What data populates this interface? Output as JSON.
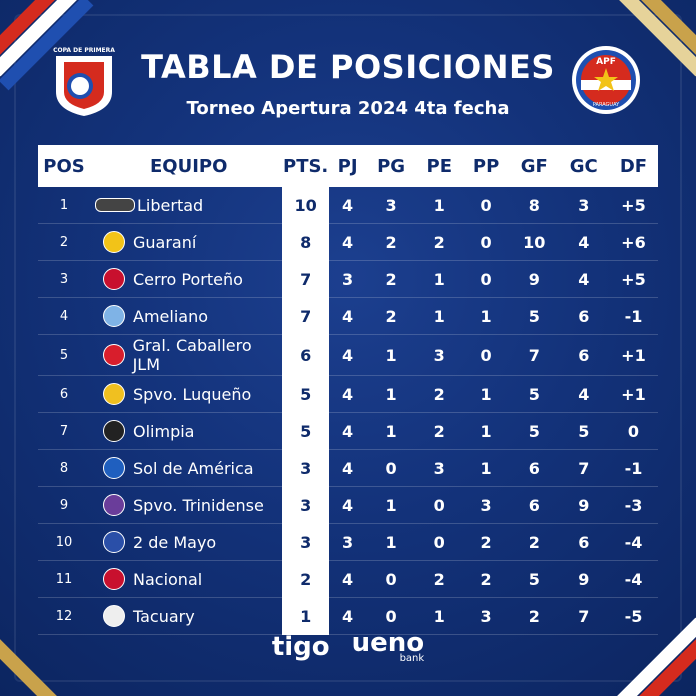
{
  "header": {
    "title": "TABLA DE POSICIONES",
    "subtitle": "Torneo Apertura 2024 4ta fecha",
    "left_logo_text": "COPA DE PRIMERA",
    "right_logo_text": "APF",
    "right_logo_sub": "PARAGUAY"
  },
  "table": {
    "columns": [
      "POS",
      "EQUIPO",
      "PTS.",
      "PJ",
      "PG",
      "PE",
      "PP",
      "GF",
      "GC",
      "DF"
    ],
    "rows": [
      {
        "pos": "1",
        "team": "Libertad",
        "pts": "10",
        "pj": "4",
        "pg": "3",
        "pe": "1",
        "pp": "0",
        "gf": "8",
        "gc": "3",
        "df": "+5",
        "crest": "#444444"
      },
      {
        "pos": "2",
        "team": "Guaraní",
        "pts": "8",
        "pj": "4",
        "pg": "2",
        "pe": "2",
        "pp": "0",
        "gf": "10",
        "gc": "4",
        "df": "+6",
        "crest": "#f2c318"
      },
      {
        "pos": "3",
        "team": "Cerro Porteño",
        "pts": "7",
        "pj": "3",
        "pg": "2",
        "pe": "1",
        "pp": "0",
        "gf": "9",
        "gc": "4",
        "df": "+5",
        "crest": "#c8102e"
      },
      {
        "pos": "4",
        "team": "Ameliano",
        "pts": "7",
        "pj": "4",
        "pg": "2",
        "pe": "1",
        "pp": "1",
        "gf": "5",
        "gc": "6",
        "df": "-1",
        "crest": "#7fb3e6"
      },
      {
        "pos": "5",
        "team": "Gral. Caballero JLM",
        "pts": "6",
        "pj": "4",
        "pg": "1",
        "pe": "3",
        "pp": "0",
        "gf": "7",
        "gc": "6",
        "df": "+1",
        "crest": "#d81e2c"
      },
      {
        "pos": "6",
        "team": "Spvo. Luqueño",
        "pts": "5",
        "pj": "4",
        "pg": "1",
        "pe": "2",
        "pp": "1",
        "gf": "5",
        "gc": "4",
        "df": "+1",
        "crest": "#f0c020"
      },
      {
        "pos": "7",
        "team": "Olimpia",
        "pts": "5",
        "pj": "4",
        "pg": "1",
        "pe": "2",
        "pp": "1",
        "gf": "5",
        "gc": "5",
        "df": "0",
        "crest": "#222222"
      },
      {
        "pos": "8",
        "team": "Sol de América",
        "pts": "3",
        "pj": "4",
        "pg": "0",
        "pe": "3",
        "pp": "1",
        "gf": "6",
        "gc": "7",
        "df": "-1",
        "crest": "#1f5fbf"
      },
      {
        "pos": "9",
        "team": "Spvo. Trinidense",
        "pts": "3",
        "pj": "4",
        "pg": "1",
        "pe": "0",
        "pp": "3",
        "gf": "6",
        "gc": "9",
        "df": "-3",
        "crest": "#6a3d9a"
      },
      {
        "pos": "10",
        "team": "2 de Mayo",
        "pts": "3",
        "pj": "3",
        "pg": "1",
        "pe": "0",
        "pp": "2",
        "gf": "2",
        "gc": "6",
        "df": "-4",
        "crest": "#2a4fa8"
      },
      {
        "pos": "11",
        "team": "Nacional",
        "pts": "2",
        "pj": "4",
        "pg": "0",
        "pe": "2",
        "pp": "2",
        "gf": "5",
        "gc": "9",
        "df": "-4",
        "crest": "#c8102e"
      },
      {
        "pos": "12",
        "team": "Tacuary",
        "pts": "1",
        "pj": "4",
        "pg": "0",
        "pe": "1",
        "pp": "3",
        "gf": "2",
        "gc": "7",
        "df": "-5",
        "crest": "#eeeeee"
      }
    ]
  },
  "sponsors": {
    "tigo": "tigo",
    "ueno": "ueno",
    "ueno_sub": "bank"
  },
  "colors": {
    "background": "#13327a",
    "header_text": "#0f2b6b",
    "red": "#d52b1e",
    "gold": "#c9a24b"
  }
}
